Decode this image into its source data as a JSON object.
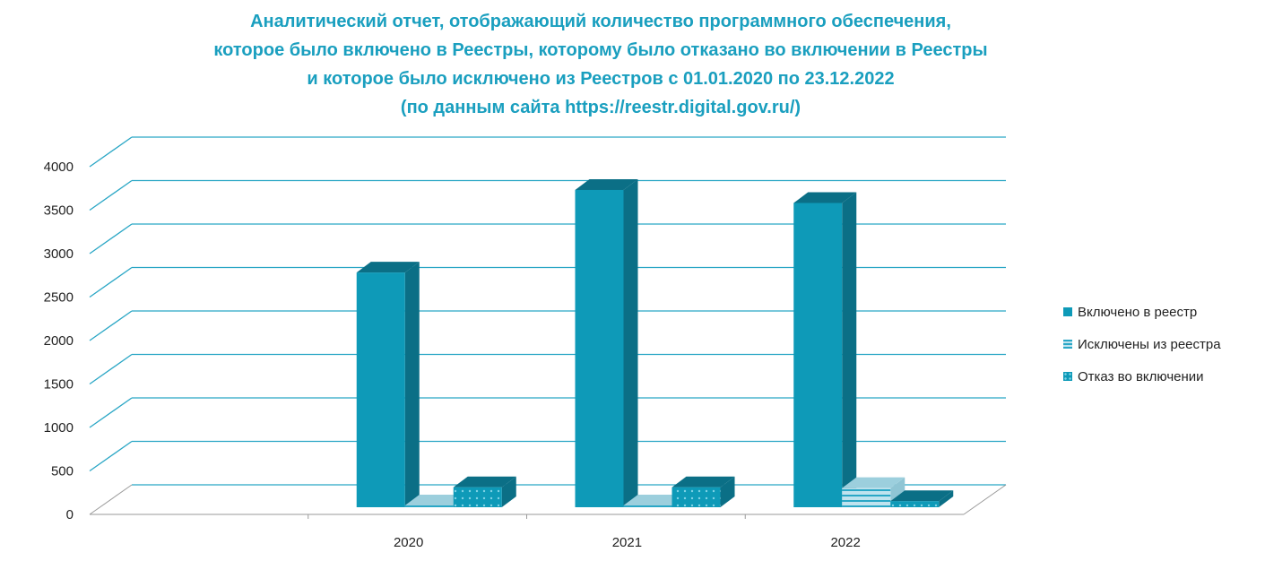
{
  "title_lines": [
    "Аналитический отчет, отображающий количество программного обеспечения,",
    "которое было включено в Реестры, которому было отказано во включении в Реестры",
    "и которое было исключено из Реестров с 01.01.2020 по 23.12.2022",
    "(по данным сайта https://reestr.digital.gov.ru/)"
  ],
  "colors": {
    "accent": "#0e9ab8",
    "accent_dark": "#0b6f86",
    "grid": "#29a6c5",
    "striped_light": "#bfe3ee",
    "title": "#1a9fbf"
  },
  "legend": [
    {
      "label": "Включено  в реестр",
      "pattern": "solid"
    },
    {
      "label": "Исключены  из реестра",
      "pattern": "striped"
    },
    {
      "label": "Отказ во включении",
      "pattern": "dotted"
    }
  ],
  "chart_data": {
    "type": "bar",
    "categories": [
      "2020",
      "2021",
      "2022"
    ],
    "yticks": [
      "0",
      "500",
      "1000",
      "1500",
      "2000",
      "2500",
      "3000",
      "3500",
      "4000"
    ],
    "ylim": [
      0,
      4000
    ],
    "series": [
      {
        "name": "Включено  в реестр",
        "values": [
          2700,
          3650,
          3500
        ]
      },
      {
        "name": "Исключены  из реестра",
        "values": [
          10,
          10,
          220
        ]
      },
      {
        "name": "Отказ во включении",
        "values": [
          230,
          230,
          70
        ]
      }
    ],
    "grid": true,
    "legend_position": "right"
  }
}
